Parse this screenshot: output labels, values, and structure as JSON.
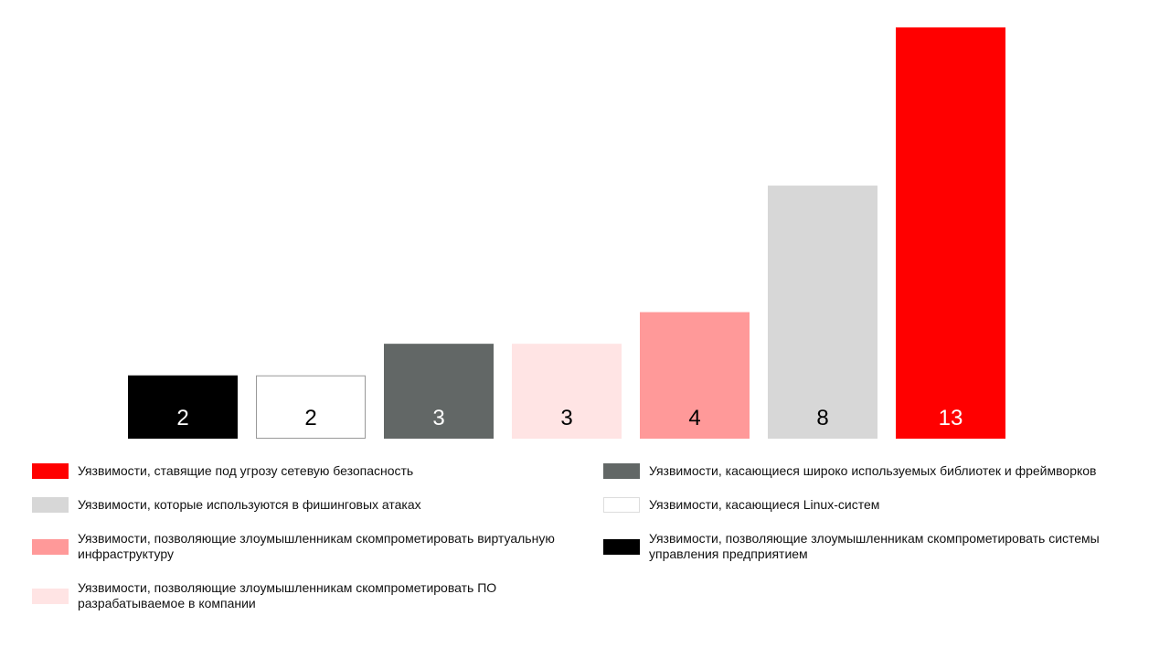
{
  "chart_data": {
    "type": "bar",
    "title": "",
    "xlabel": "",
    "ylabel": "",
    "ylim": [
      0,
      13
    ],
    "grid": false,
    "legend_position": "bottom",
    "categories": [
      "Уязвимости, позволяющие злоумышленникам скомпрометировать системы управления предприятием",
      "Уязвимости, касающиеся Linux-систем",
      "Уязвимости, касающиеся широко используемых библиотек и фреймворков",
      "Уязвимости, позволяющие злоумышленникам скомпрометировать ПО разрабатываемое в компании",
      "Уязвимости, позволяющие злоумышленникам скомпрометировать виртуальную инфраструктуру",
      "Уязвимости, которые используются в фишинговых атаках",
      "Уязвимости, ставящие под угрозу сетевую безопасность"
    ],
    "values": [
      2,
      2,
      3,
      3,
      4,
      8,
      13
    ],
    "colors": [
      "#000000",
      "#ffffff",
      "#626766",
      "#ffe4e4",
      "#ff9999",
      "#d7d7d7",
      "#ff0000"
    ],
    "border_colors": [
      null,
      "#999999",
      null,
      null,
      null,
      null,
      null
    ],
    "label_colors": [
      "#ffffff",
      "#000000",
      "#ffffff",
      "#000000",
      "#000000",
      "#000000",
      "#ffffff"
    ]
  },
  "legend": {
    "items": [
      {
        "label": "Уязвимости, ставящие под угрозу сетевую безопасность",
        "color": "#ff0000"
      },
      {
        "label": "Уязвимости, которые используются в фишинговых атаках",
        "color": "#d7d7d7"
      },
      {
        "label": "Уязвимости, позволяющие злоумышленникам скомпрометировать виртуальную инфраструктуру",
        "color": "#ff9999"
      },
      {
        "label": "Уязвимости, позволяющие злоумышленникам скомпрометировать ПО разрабатываемое в компании",
        "color": "#ffe4e4"
      },
      {
        "label": "Уязвимости, касающиеся широко используемых библиотек и фреймворков",
        "color": "#626766"
      },
      {
        "label": "Уязвимости, касающиеся Linux-систем",
        "color": "#ffffff",
        "border": "#dddddd"
      },
      {
        "label": "Уязвимости, позволяющие злоумышленникам скомпрометировать системы управления предприятием",
        "color": "#000000"
      }
    ]
  }
}
